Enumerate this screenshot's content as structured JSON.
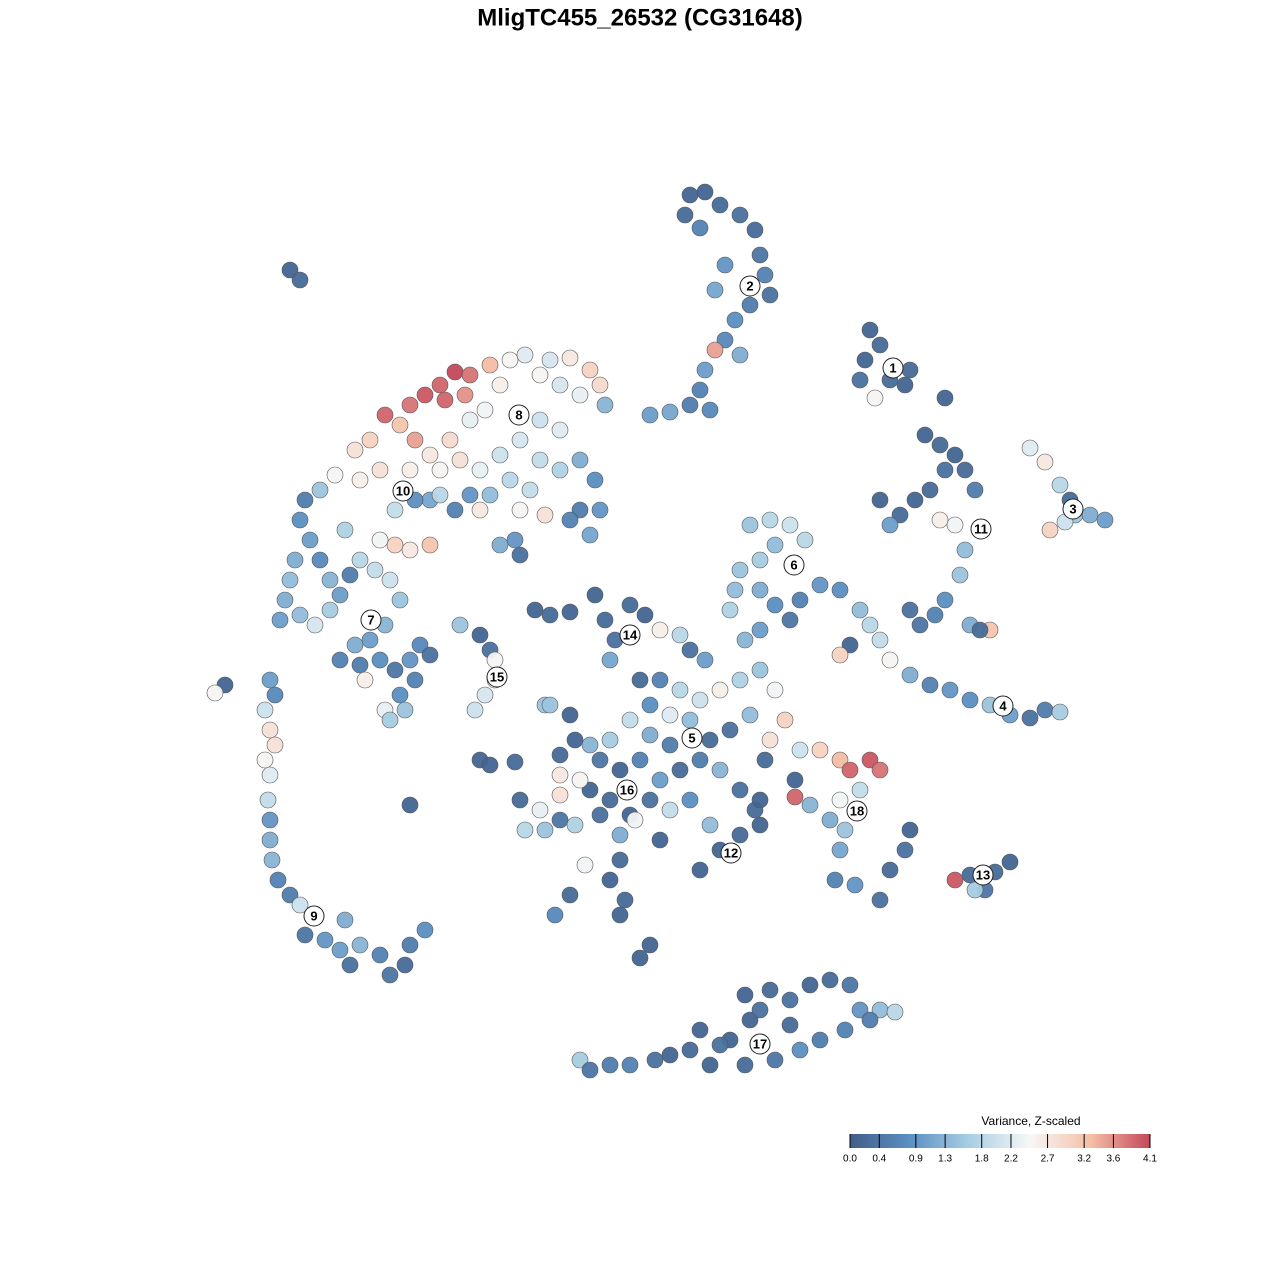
{
  "chart_data": {
    "type": "scatter",
    "title": "MligTC455_26532 (CG31648)",
    "xlim": [
      200,
      1120
    ],
    "ylim": [
      1090,
      170
    ],
    "x": [
      690,
      705,
      720,
      740,
      755,
      760,
      765,
      770,
      750,
      735,
      725,
      740,
      715,
      705,
      700,
      690,
      670,
      710,
      725,
      715,
      685,
      700,
      870,
      880,
      865,
      890,
      905,
      875,
      860,
      910,
      945,
      925,
      940,
      955,
      965,
      945,
      930,
      915,
      900,
      880,
      890,
      940,
      955,
      975,
      965,
      960,
      945,
      935,
      910,
      920,
      970,
      990,
      980,
      1030,
      1045,
      1060,
      1070,
      1075,
      1090,
      1105,
      1050,
      1065,
      860,
      870,
      880,
      890,
      910,
      930,
      950,
      970,
      990,
      1010,
      1030,
      1045,
      1060,
      850,
      840,
      750,
      770,
      790,
      805,
      775,
      760,
      740,
      735,
      730,
      760,
      775,
      800,
      820,
      840,
      790,
      760,
      745,
      385,
      410,
      425,
      440,
      455,
      470,
      445,
      465,
      400,
      370,
      355,
      415,
      490,
      510,
      525,
      550,
      570,
      590,
      600,
      605,
      580,
      560,
      540,
      500,
      485,
      470,
      450,
      430,
      410,
      380,
      360,
      335,
      320,
      540,
      560,
      520,
      500,
      480,
      460,
      440,
      540,
      560,
      580,
      595,
      600,
      580,
      590,
      570,
      510,
      530,
      490,
      470,
      455,
      430,
      415,
      395,
      480,
      520,
      545,
      430,
      410,
      395,
      380,
      440,
      305,
      300,
      310,
      295,
      290,
      285,
      280,
      300,
      315,
      330,
      340,
      350,
      360,
      375,
      390,
      400,
      385,
      370,
      355,
      340,
      360,
      380,
      395,
      410,
      420,
      430,
      415,
      400,
      385,
      365,
      390,
      405,
      320,
      330,
      345,
      270,
      275,
      265,
      270,
      275,
      265,
      270,
      268,
      270,
      270,
      272,
      278,
      290,
      300,
      315,
      305,
      325,
      340,
      350,
      360,
      380,
      390,
      405,
      410,
      425,
      345,
      225,
      215,
      460,
      480,
      490,
      495,
      495,
      485,
      475,
      535,
      550,
      570,
      595,
      605,
      615,
      630,
      645,
      660,
      680,
      690,
      705,
      610,
      640,
      660,
      680,
      700,
      720,
      740,
      760,
      775,
      785,
      770,
      750,
      730,
      710,
      690,
      670,
      650,
      630,
      610,
      590,
      575,
      560,
      545,
      570,
      600,
      620,
      640,
      660,
      680,
      700,
      720,
      740,
      755,
      760,
      740,
      720,
      700,
      710,
      690,
      670,
      650,
      630,
      610,
      590,
      580,
      560,
      540,
      525,
      545,
      560,
      575,
      600,
      620,
      635,
      660,
      620,
      610,
      585,
      570,
      555,
      620,
      625,
      650,
      640,
      520,
      480,
      490,
      515,
      410,
      550,
      650,
      670,
      760,
      765,
      560,
      800,
      820,
      840,
      850,
      870,
      880,
      860,
      840,
      830,
      845,
      840,
      835,
      855,
      880,
      890,
      905,
      910,
      795,
      795,
      810,
      955,
      970,
      985,
      995,
      1010,
      975,
      580,
      590,
      610,
      630,
      655,
      670,
      690,
      710,
      730,
      750,
      745,
      770,
      790,
      810,
      830,
      850,
      860,
      880,
      895,
      870,
      845,
      820,
      800,
      775,
      745,
      720,
      700,
      790,
      760,
      290,
      300,
      650,
      500,
      515,
      520
    ],
    "y": [
      195,
      192,
      205,
      215,
      230,
      255,
      275,
      295,
      305,
      320,
      340,
      355,
      350,
      370,
      390,
      405,
      412,
      410,
      265,
      290,
      215,
      228,
      330,
      345,
      360,
      380,
      385,
      398,
      380,
      370,
      398,
      435,
      445,
      455,
      470,
      470,
      490,
      500,
      515,
      500,
      525,
      520,
      525,
      490,
      550,
      575,
      600,
      615,
      610,
      625,
      625,
      630,
      630,
      448,
      462,
      485,
      500,
      515,
      515,
      520,
      530,
      522,
      610,
      625,
      640,
      660,
      675,
      685,
      690,
      700,
      705,
      715,
      718,
      710,
      712,
      645,
      655,
      525,
      520,
      525,
      540,
      545,
      560,
      570,
      590,
      610,
      590,
      605,
      600,
      585,
      590,
      620,
      630,
      640,
      415,
      405,
      395,
      385,
      372,
      375,
      400,
      395,
      425,
      440,
      450,
      440,
      365,
      360,
      355,
      360,
      358,
      370,
      385,
      405,
      395,
      385,
      375,
      385,
      410,
      420,
      440,
      455,
      470,
      470,
      480,
      475,
      490,
      420,
      430,
      440,
      455,
      470,
      460,
      470,
      460,
      470,
      460,
      480,
      510,
      510,
      535,
      520,
      480,
      490,
      495,
      495,
      510,
      500,
      500,
      510,
      510,
      510,
      515,
      545,
      550,
      545,
      540,
      495,
      500,
      520,
      540,
      560,
      580,
      600,
      620,
      615,
      625,
      610,
      595,
      575,
      560,
      570,
      580,
      600,
      625,
      640,
      645,
      660,
      665,
      660,
      670,
      660,
      645,
      655,
      680,
      695,
      710,
      680,
      720,
      710,
      560,
      580,
      530,
      680,
      695,
      710,
      730,
      745,
      760,
      775,
      800,
      820,
      840,
      860,
      880,
      895,
      905,
      915,
      935,
      940,
      950,
      965,
      945,
      955,
      975,
      965,
      945,
      930,
      920,
      685,
      693,
      625,
      635,
      650,
      660,
      680,
      695,
      710,
      610,
      615,
      612,
      595,
      620,
      640,
      605,
      615,
      630,
      635,
      650,
      660,
      660,
      680,
      680,
      690,
      700,
      690,
      680,
      670,
      690,
      720,
      740,
      715,
      730,
      740,
      720,
      715,
      705,
      720,
      740,
      745,
      740,
      755,
      705,
      715,
      760,
      770,
      760,
      780,
      770,
      760,
      770,
      790,
      810,
      825,
      835,
      850,
      870,
      825,
      800,
      810,
      800,
      815,
      800,
      790,
      780,
      795,
      810,
      830,
      830,
      820,
      825,
      815,
      835,
      820,
      840,
      860,
      880,
      865,
      895,
      915,
      915,
      900,
      945,
      958,
      800,
      760,
      765,
      762,
      805,
      705,
      735,
      745,
      800,
      760,
      775,
      750,
      750,
      760,
      770,
      760,
      770,
      790,
      800,
      820,
      830,
      850,
      880,
      885,
      900,
      870,
      850,
      830,
      780,
      797,
      805,
      880,
      875,
      890,
      872,
      862,
      890,
      1060,
      1070,
      1065,
      1065,
      1060,
      1055,
      1050,
      1065,
      1040,
      1020,
      995,
      990,
      1000,
      985,
      980,
      985,
      1010,
      1010,
      1012,
      1020,
      1030,
      1040,
      1050,
      1060,
      1065,
      1045,
      1030,
      1025,
      1010,
      270,
      280,
      415,
      545,
      540,
      555
    ],
    "values": [
      0.1,
      0.1,
      0.2,
      0.3,
      0.2,
      0.4,
      0.6,
      0.3,
      0.5,
      0.8,
      0.7,
      1.2,
      3.5,
      1.0,
      0.6,
      0.5,
      1.1,
      0.7,
      0.9,
      1.1,
      0.2,
      0.6,
      0.1,
      0.2,
      0.1,
      0.2,
      0.1,
      2.5,
      0.3,
      0.2,
      0.1,
      0.1,
      0.2,
      0.1,
      0.2,
      0.3,
      0.2,
      0.1,
      0.2,
      0.1,
      1.0,
      2.6,
      2.4,
      0.5,
      1.4,
      1.5,
      0.8,
      0.6,
      0.3,
      0.4,
      1.2,
      3.2,
      0.2,
      2.2,
      2.7,
      1.8,
      0.2,
      1.5,
      1.2,
      1.0,
      3.0,
      2.0,
      1.4,
      1.8,
      1.9,
      2.5,
      1.2,
      0.6,
      0.9,
      0.8,
      1.5,
      1.0,
      0.3,
      0.5,
      1.6,
      0.1,
      3.0,
      1.5,
      1.8,
      2.0,
      1.8,
      1.4,
      1.6,
      1.5,
      1.4,
      1.7,
      1.2,
      0.8,
      0.6,
      0.9,
      0.8,
      0.4,
      1.0,
      1.3,
      3.9,
      3.8,
      4.0,
      3.9,
      4.1,
      3.8,
      3.9,
      3.6,
      3.2,
      3.0,
      2.8,
      3.5,
      3.3,
      2.5,
      2.2,
      2.1,
      2.7,
      3.0,
      2.9,
      1.3,
      2.3,
      2.1,
      2.5,
      2.6,
      2.4,
      2.3,
      2.9,
      2.7,
      2.6,
      2.8,
      2.6,
      2.5,
      1.5,
      2.0,
      2.2,
      2.1,
      2.0,
      2.3,
      2.8,
      2.5,
      1.9,
      1.7,
      1.2,
      0.8,
      0.9,
      0.5,
      1.1,
      0.6,
      1.8,
      1.9,
      1.4,
      0.9,
      0.6,
      1.1,
      0.8,
      1.9,
      2.7,
      2.5,
      2.8,
      3.2,
      2.7,
      3.0,
      2.4,
      1.8,
      0.5,
      0.8,
      1.0,
      1.2,
      1.4,
      1.2,
      1.0,
      1.4,
      2.1,
      1.6,
      1.0,
      0.5,
      1.8,
      1.9,
      2.0,
      1.5,
      1.3,
      1.0,
      1.2,
      0.6,
      0.5,
      0.8,
      0.4,
      0.9,
      0.7,
      0.3,
      0.6,
      0.8,
      2.3,
      2.6,
      1.6,
      1.5,
      0.7,
      1.3,
      1.7,
      1.0,
      0.7,
      2.0,
      2.8,
      2.8,
      2.5,
      2.2,
      1.9,
      0.9,
      1.2,
      1.3,
      0.6,
      0.5,
      2.0,
      0.3,
      0.4,
      0.9,
      1.0,
      0.3,
      1.3,
      0.6,
      0.4,
      0.2,
      0.5,
      0.8,
      1.2,
      0.1,
      2.5,
      1.5,
      0.1,
      0.3,
      2.5,
      2.4,
      2.1,
      2.0,
      0.1,
      0.2,
      0.1,
      0.1,
      0.2,
      0.3,
      0.2,
      0.1,
      2.6,
      1.8,
      0.3,
      1.0,
      1.1,
      0.2,
      0.6,
      1.8,
      2.0,
      2.6,
      1.7,
      1.5,
      2.4,
      3.0,
      2.8,
      1.4,
      0.3,
      0.2,
      1.4,
      2.2,
      0.8,
      1.9,
      1.6,
      1.3,
      0.1,
      0.2,
      1.5,
      0.1,
      0.4,
      0.1,
      0.6,
      1.0,
      0.2,
      0.5,
      1.3,
      0.3,
      0.2,
      0.1,
      0.2,
      0.1,
      0.1,
      1.4,
      0.8,
      1.9,
      0.3,
      0.1,
      0.2,
      0.1,
      2.5,
      2.8,
      2.3,
      1.8,
      1.5,
      0.4,
      1.7,
      0.3,
      1.2,
      2.4,
      0.1,
      0.2,
      0.1,
      2.4,
      0.2,
      0.7,
      0.1,
      0.2,
      0.1,
      0.1,
      0.2,
      0.1,
      0.1,
      0.2,
      0.1,
      1.5,
      1.2,
      0.5,
      0.1,
      0.2,
      2.7,
      2.0,
      3.0,
      3.3,
      3.9,
      4.0,
      3.8,
      1.9,
      2.4,
      1.2,
      1.5,
      1.1,
      0.6,
      0.9,
      0.3,
      0.2,
      0.3,
      0.1,
      0.1,
      3.9,
      1.3,
      4.0,
      0.2,
      0.4,
      0.2,
      0.1,
      1.6,
      1.6,
      0.4,
      0.5,
      0.6,
      0.3,
      0.1,
      0.2,
      0.1,
      0.1,
      0.1,
      0.1,
      0.2,
      0.3,
      0.1,
      0.2,
      0.4,
      0.9,
      1.4,
      1.8,
      0.5,
      0.6,
      0.5,
      0.8,
      0.4,
      0.2,
      0.3,
      0.1,
      0.2,
      0.3,
      0.1,
      0.2,
      1.0,
      1.2,
      0.9,
      0.3
    ],
    "clusters": {
      "labels": [
        "1",
        "2",
        "3",
        "4",
        "5",
        "6",
        "7",
        "8",
        "9",
        "10",
        "11",
        "12",
        "13",
        "14",
        "15",
        "16",
        "17",
        "18"
      ],
      "x": [
        893,
        750,
        1073,
        1003,
        692,
        794,
        371,
        519,
        314,
        403,
        981,
        731,
        983,
        630,
        497,
        627,
        760,
        857
      ],
      "y": [
        368,
        286,
        509,
        706,
        738,
        565,
        620,
        415,
        916,
        491,
        529,
        853,
        875,
        635,
        677,
        790,
        1044,
        811
      ]
    },
    "colorbar": {
      "title": "Variance, Z-scaled",
      "lim": [
        0,
        4.1
      ],
      "ticks": [
        {
          "value": 0,
          "label": "0.0"
        },
        0.4,
        0.9,
        1.3,
        1.8,
        2.2,
        2.7,
        3.2,
        3.6,
        4.1
      ],
      "colors": [
        "#3f5f8a",
        "#5b8fc2",
        "#a9cfe3",
        "#f7f7f7",
        "#f5c0a7",
        "#c4485a"
      ]
    }
  }
}
